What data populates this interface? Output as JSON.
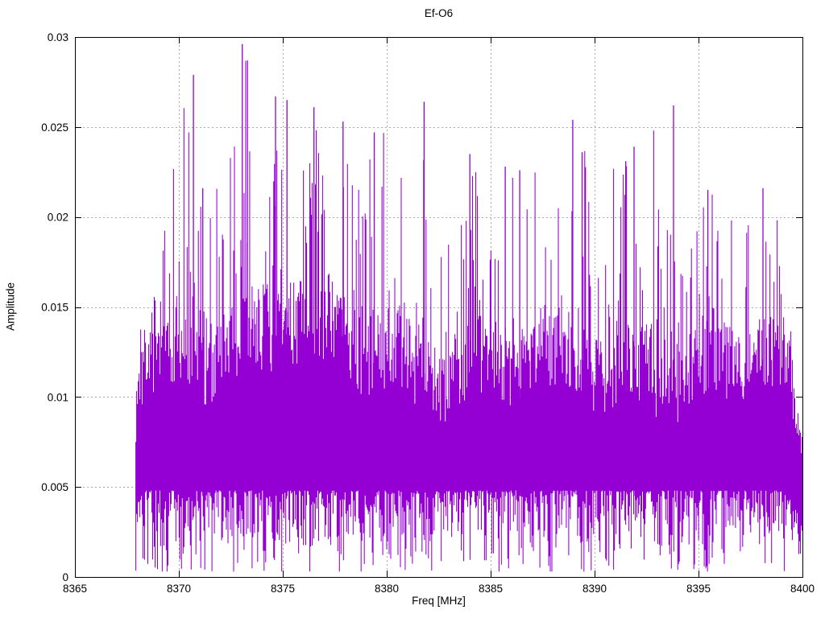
{
  "chart_data": {
    "type": "line",
    "style": "dense impulse-like noise spectrum rendered as vertical min-max strokes",
    "title": "Ef-O6",
    "xlabel": "Freq [MHz]",
    "ylabel": "Amplitude",
    "xlim": [
      8365,
      8400
    ],
    "ylim": [
      0,
      0.03
    ],
    "xticks": [
      8365,
      8370,
      8375,
      8380,
      8385,
      8390,
      8395,
      8400
    ],
    "xticklabels": [
      "8365",
      "8370",
      "8375",
      "8380",
      "8385",
      "8390",
      "8395",
      "8400"
    ],
    "yticks": [
      0,
      0.005,
      0.01,
      0.015,
      0.02,
      0.025,
      0.03
    ],
    "yticklabels": [
      "0",
      "0.005",
      "0.01",
      "0.015",
      "0.02",
      "0.025",
      "0.03"
    ],
    "grid": true,
    "legend": false,
    "line_color": "#9400d3",
    "grid_color": "#aaaaaa",
    "border_color": "#000000",
    "data_freq_range": [
      8367.93,
      8399.98
    ],
    "noise_band": {
      "typical_low": 0.0045,
      "typical_high": 0.012,
      "floor_min": 0.0003,
      "note": "solid band ~0.005-0.013, frequent dips toward 0, spikes to 0.0296"
    },
    "envelope_max": [
      [
        8367.95,
        0.013
      ],
      [
        8368.4,
        0.0158
      ],
      [
        8369.0,
        0.0162
      ],
      [
        8369.6,
        0.0225
      ],
      [
        8370.2,
        0.0272
      ],
      [
        8371.0,
        0.0282
      ],
      [
        8372.0,
        0.0262
      ],
      [
        8373.1,
        0.0296
      ],
      [
        8374.0,
        0.0268
      ],
      [
        8375.2,
        0.0266
      ],
      [
        8376.5,
        0.0262
      ],
      [
        8378.0,
        0.0253
      ],
      [
        8379.5,
        0.0248
      ],
      [
        8380.6,
        0.0247
      ],
      [
        8381.8,
        0.0262
      ],
      [
        8383.0,
        0.0232
      ],
      [
        8384.2,
        0.0236
      ],
      [
        8385.8,
        0.0228
      ],
      [
        8387.2,
        0.0225
      ],
      [
        8389.0,
        0.0253
      ],
      [
        8390.3,
        0.0222
      ],
      [
        8391.9,
        0.0239
      ],
      [
        8393.8,
        0.0262
      ],
      [
        8395.2,
        0.0215
      ],
      [
        8396.6,
        0.0212
      ],
      [
        8398.1,
        0.0216
      ],
      [
        8399.0,
        0.0195
      ],
      [
        8399.45,
        0.0138
      ],
      [
        8399.8,
        0.0095
      ],
      [
        8400.0,
        0.0085
      ]
    ],
    "peaks": [
      [
        8370.7,
        0.0279
      ],
      [
        8371.15,
        0.0216
      ],
      [
        8373.05,
        0.0296
      ],
      [
        8373.3,
        0.0287
      ],
      [
        8374.65,
        0.0267
      ],
      [
        8375.2,
        0.0265
      ],
      [
        8376.5,
        0.0261
      ],
      [
        8377.9,
        0.0253
      ],
      [
        8379.4,
        0.0247
      ],
      [
        8381.8,
        0.0264
      ],
      [
        8384.0,
        0.0235
      ],
      [
        8385.7,
        0.0228
      ],
      [
        8386.4,
        0.0226
      ],
      [
        8388.95,
        0.0254
      ],
      [
        8389.4,
        0.0236
      ],
      [
        8391.5,
        0.0231
      ],
      [
        8391.9,
        0.0239
      ],
      [
        8393.8,
        0.0262
      ],
      [
        8395.45,
        0.0215
      ],
      [
        8398.1,
        0.0216
      ]
    ],
    "seed": 7,
    "columns": 832
  }
}
